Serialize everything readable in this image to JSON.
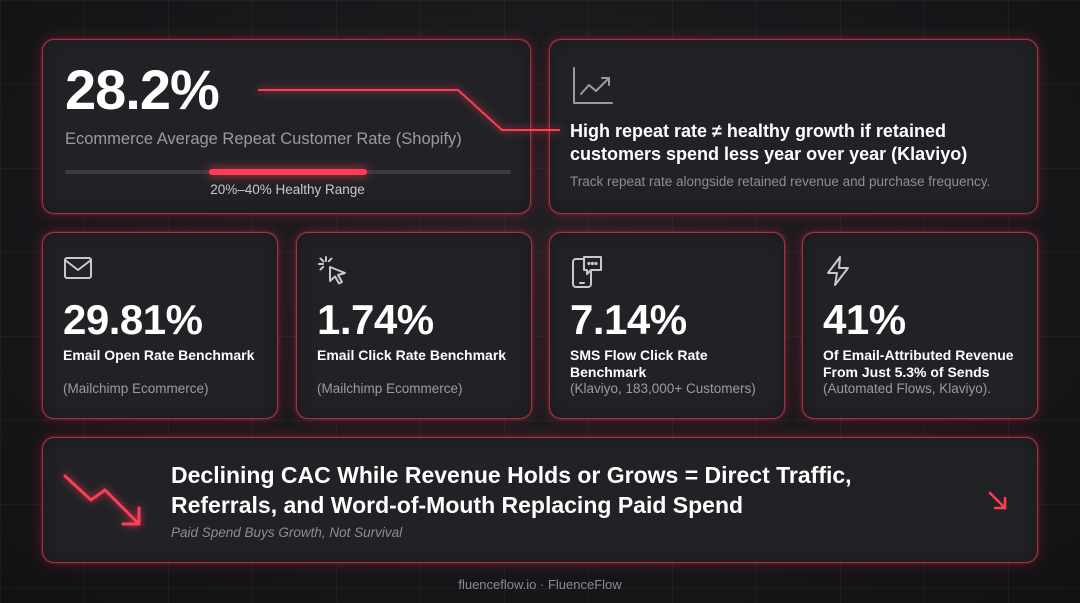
{
  "hero": {
    "value": "28.2%",
    "label": "Ecommerce Average Repeat Customer Rate (Shopify)",
    "range_label": "20%–40% Healthy Range"
  },
  "insight": {
    "icon": "line-chart-icon",
    "title": "High repeat rate ≠ healthy growth if retained customers spend less year over year (Klaviyo)",
    "subtitle": "Track repeat rate alongside retained revenue and purchase frequency."
  },
  "metrics": [
    {
      "icon": "mail-icon",
      "value": "29.81%",
      "title": "Email Open Rate Benchmark",
      "source": "(Mailchimp Ecommerce)"
    },
    {
      "icon": "cursor-click-icon",
      "value": "1.74%",
      "title": "Email Click Rate Benchmark",
      "source": "(Mailchimp Ecommerce)"
    },
    {
      "icon": "phone-message-icon",
      "value": "7.14%",
      "title": "SMS Flow Click Rate Benchmark",
      "source": "(Klaviyo, 183,000+ Customers)"
    },
    {
      "icon": "lightning-icon",
      "value": "41%",
      "title": "Of Email-Attributed Revenue From Just 5.3% of Sends",
      "source": "(Automated Flows, Klaviyo)."
    }
  ],
  "banner": {
    "icon": "trend-down-icon",
    "title": "Declining CAC While Revenue Holds or Grows = Direct Traffic, Referrals, and Word-of-Mouth Replacing Paid Spend",
    "subtitle": "Paid Spend Buys Growth, Not Survival",
    "arrow_icon": "arrow-down-right-icon"
  },
  "footer": "fluenceflow.io · FluenceFlow",
  "colors": {
    "accent": "#ff3d55",
    "card_bg": "#222226",
    "page_bg": "#17171a",
    "muted_text": "#9a9aa2"
  }
}
